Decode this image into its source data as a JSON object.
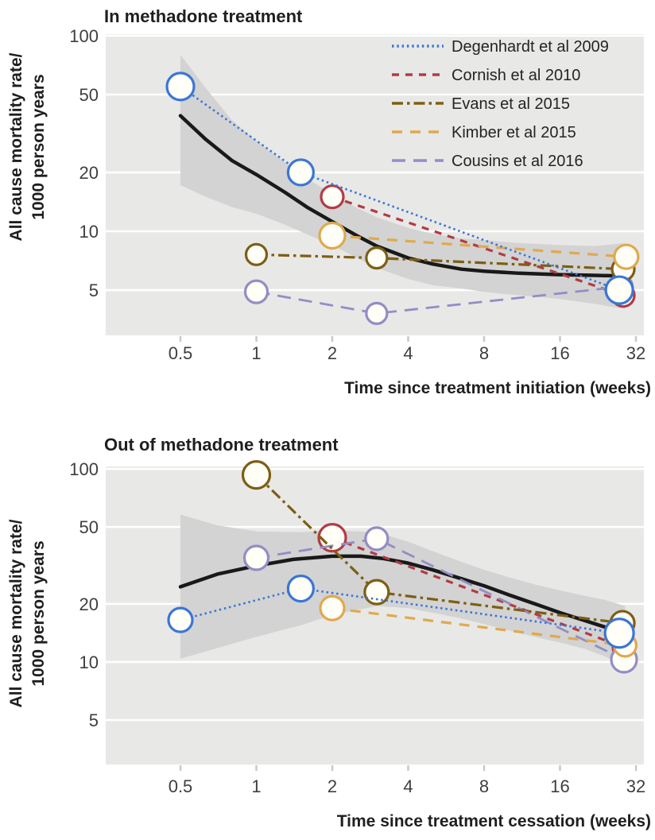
{
  "figure": {
    "y_axis_label_lines": [
      "All cause mortality rate/",
      "1000 person years"
    ]
  },
  "colors": {
    "plot_bg": "#e8e8e7",
    "grid": "#ffffff",
    "band": "#d3d3d3",
    "trend": "#191919",
    "marker_fill": "#fffef7",
    "tick_mark": "#c9c9c9",
    "tick_text": "#3f3f3f",
    "title_text": "#1f1f1f"
  },
  "chart_data": [
    {
      "type": "scatter-line",
      "title": "In methadone treatment",
      "xlabel": "Time since treatment initiation (weeks)",
      "ylabel": "All cause mortality rate/ 1000 person years",
      "x_scale": "log2",
      "y_scale": "log10",
      "x_ticks": [
        0.5,
        1,
        2,
        4,
        8,
        16,
        32
      ],
      "y_ticks": [
        100,
        50,
        20,
        10,
        5
      ],
      "xlim": [
        0.25,
        34.5
      ],
      "ylim": [
        2.9,
        103
      ],
      "grid": "horizontal",
      "legend": true,
      "legend_position": "top-right-inside",
      "series": [
        {
          "name": "Degenhardt et al 2009",
          "color": "#3a76d6",
          "dash": "2.5 3.8",
          "width": 2.6,
          "z": 5,
          "points": [
            {
              "x": 0.5,
              "y": 55,
              "r": 17
            },
            {
              "x": 1.5,
              "y": 20,
              "r": 16
            },
            {
              "x": 27.5,
              "y": 5.0,
              "r": 17
            }
          ]
        },
        {
          "name": "Cornish et al 2010",
          "color": "#b23b44",
          "dash": "9 8",
          "width": 3.2,
          "z": 1,
          "points": [
            {
              "x": 2,
              "y": 15,
              "r": 14
            },
            {
              "x": 28.5,
              "y": 4.7,
              "r": 14
            }
          ]
        },
        {
          "name": "Evans et al 2015",
          "color": "#7d5e13",
          "dash": "14 5 3.5 5",
          "width": 3.2,
          "z": 3,
          "points": [
            {
              "x": 1,
              "y": 7.6,
              "r": 13
            },
            {
              "x": 3,
              "y": 7.3,
              "r": 13
            },
            {
              "x": 28.5,
              "y": 6.4,
              "r": 14
            }
          ]
        },
        {
          "name": "Kimber et al 2015",
          "color": "#e0a94e",
          "dash": "13 10",
          "width": 3.2,
          "z": 4,
          "points": [
            {
              "x": 2,
              "y": 9.5,
              "r": 16
            },
            {
              "x": 29.3,
              "y": 7.4,
              "r": 15
            }
          ]
        },
        {
          "name": "Cousins et al 2016",
          "color": "#938dc5",
          "dash": "17 10",
          "width": 2.8,
          "z": 2,
          "points": [
            {
              "x": 1,
              "y": 4.9,
              "r": 14
            },
            {
              "x": 3,
              "y": 3.8,
              "r": 13
            },
            {
              "x": 27.8,
              "y": 5.2,
              "r": 15
            }
          ]
        }
      ],
      "trend": {
        "name": "pooled smoothed mortality rate",
        "points": [
          [
            0.5,
            39
          ],
          [
            0.63,
            29.5
          ],
          [
            0.8,
            23
          ],
          [
            1,
            19.5
          ],
          [
            1.3,
            15.8
          ],
          [
            1.6,
            13.2
          ],
          [
            2,
            11.2
          ],
          [
            2.5,
            9.5
          ],
          [
            3,
            8.4
          ],
          [
            4,
            7.3
          ],
          [
            5,
            6.8
          ],
          [
            6.5,
            6.4
          ],
          [
            8,
            6.25
          ],
          [
            11,
            6.1
          ],
          [
            16,
            6.0
          ],
          [
            22,
            5.95
          ],
          [
            29,
            5.9
          ]
        ]
      },
      "band": {
        "name": "95% confidence band",
        "upper": [
          [
            0.5,
            80
          ],
          [
            0.63,
            54
          ],
          [
            0.8,
            37
          ],
          [
            1,
            29
          ],
          [
            1.3,
            22.5
          ],
          [
            1.6,
            18.5
          ],
          [
            2,
            15.5
          ],
          [
            2.5,
            13.2
          ],
          [
            3,
            11.8
          ],
          [
            4,
            10.4
          ],
          [
            5,
            9.7
          ],
          [
            6.5,
            9.2
          ],
          [
            8,
            9.0
          ],
          [
            11,
            8.7
          ],
          [
            16,
            8.5
          ],
          [
            22,
            8.4
          ],
          [
            29,
            8.7
          ]
        ],
        "lower": [
          [
            0.5,
            17.2
          ],
          [
            0.63,
            15
          ],
          [
            0.8,
            13.3
          ],
          [
            1,
            12.3
          ],
          [
            1.3,
            10.8
          ],
          [
            1.6,
            9.6
          ],
          [
            2,
            8.5
          ],
          [
            2.5,
            7.3
          ],
          [
            3,
            6.5
          ],
          [
            4,
            5.7
          ],
          [
            5,
            5.3
          ],
          [
            6.5,
            5.1
          ],
          [
            8,
            4.9
          ],
          [
            11,
            4.7
          ],
          [
            16,
            4.5
          ],
          [
            22,
            4.25
          ],
          [
            29,
            4.0
          ]
        ]
      }
    },
    {
      "type": "scatter-line",
      "title": "Out of methadone treatment",
      "xlabel": "Time since treatment cessation (weeks)",
      "ylabel": "All cause mortality rate/ 1000 person years",
      "x_scale": "log2",
      "y_scale": "log10",
      "x_ticks": [
        0.5,
        1,
        2,
        4,
        8,
        16,
        32
      ],
      "y_ticks": [
        100,
        50,
        20,
        10,
        5
      ],
      "xlim": [
        0.25,
        34.5
      ],
      "ylim": [
        2.9,
        103
      ],
      "grid": "horizontal",
      "legend": false,
      "series": [
        {
          "name": "Degenhardt et al 2009",
          "color": "#3a76d6",
          "dash": "2.5 3.8",
          "width": 2.6,
          "z": 5,
          "points": [
            {
              "x": 0.5,
              "y": 16.5,
              "r": 15
            },
            {
              "x": 1.5,
              "y": 24,
              "r": 16
            },
            {
              "x": 27.5,
              "y": 14.1,
              "r": 18
            }
          ]
        },
        {
          "name": "Cornish et al 2010",
          "color": "#b23b44",
          "dash": "9 8",
          "width": 3.2,
          "z": 1,
          "points": [
            {
              "x": 2,
              "y": 44,
              "r": 17
            },
            {
              "x": 28.7,
              "y": 11.9,
              "r": 14
            }
          ]
        },
        {
          "name": "Evans et al 2015",
          "color": "#7d5e13",
          "dash": "14 5 3.5 5",
          "width": 3.2,
          "z": 3,
          "points": [
            {
              "x": 1,
              "y": 93,
              "r": 17
            },
            {
              "x": 3,
              "y": 23,
              "r": 15
            },
            {
              "x": 28.3,
              "y": 15.9,
              "r": 15
            }
          ]
        },
        {
          "name": "Kimber et al 2015",
          "color": "#e0a94e",
          "dash": "13 10",
          "width": 3.2,
          "z": 4,
          "points": [
            {
              "x": 2,
              "y": 19,
              "r": 15
            },
            {
              "x": 29,
              "y": 12.2,
              "r": 14
            }
          ]
        },
        {
          "name": "Cousins et al 2016",
          "color": "#938dc5",
          "dash": "17 10",
          "width": 2.8,
          "z": 2,
          "points": [
            {
              "x": 1,
              "y": 34.6,
              "r": 15
            },
            {
              "x": 3,
              "y": 43.5,
              "r": 14
            },
            {
              "x": 28.7,
              "y": 10.3,
              "r": 16
            }
          ]
        }
      ],
      "trend": {
        "name": "pooled smoothed mortality rate",
        "points": [
          [
            0.5,
            24.5
          ],
          [
            0.7,
            28.5
          ],
          [
            1,
            31.5
          ],
          [
            1.4,
            34
          ],
          [
            2,
            35.3
          ],
          [
            2.6,
            35.3
          ],
          [
            3.2,
            34.3
          ],
          [
            4,
            32.5
          ],
          [
            5,
            30
          ],
          [
            6.5,
            27
          ],
          [
            8,
            24.8
          ],
          [
            10,
            22.3
          ],
          [
            13,
            19.8
          ],
          [
            16,
            18
          ],
          [
            20,
            16.4
          ],
          [
            24,
            15.2
          ],
          [
            29,
            14
          ]
        ]
      },
      "band": {
        "name": "95% confidence band",
        "upper": [
          [
            0.5,
            58
          ],
          [
            0.7,
            51
          ],
          [
            1,
            47.5
          ],
          [
            1.5,
            47
          ],
          [
            2,
            48
          ],
          [
            3,
            47
          ],
          [
            4,
            42
          ],
          [
            5,
            37.5
          ],
          [
            6.5,
            33
          ],
          [
            8,
            30
          ],
          [
            10,
            27.5
          ],
          [
            13,
            25
          ],
          [
            16,
            23.5
          ],
          [
            20,
            22
          ],
          [
            24,
            21
          ],
          [
            29,
            19.5
          ]
        ],
        "lower": [
          [
            0.5,
            10.4
          ],
          [
            0.7,
            11.8
          ],
          [
            1,
            13.5
          ],
          [
            1.5,
            15.5
          ],
          [
            2,
            17.5
          ],
          [
            3,
            19.5
          ],
          [
            4,
            19
          ],
          [
            5,
            18
          ],
          [
            6.5,
            16.8
          ],
          [
            8,
            15.7
          ],
          [
            10,
            14.6
          ],
          [
            13,
            13.4
          ],
          [
            16,
            12.6
          ],
          [
            20,
            11.7
          ],
          [
            24,
            10.7
          ],
          [
            29,
            9.6
          ]
        ]
      }
    }
  ]
}
